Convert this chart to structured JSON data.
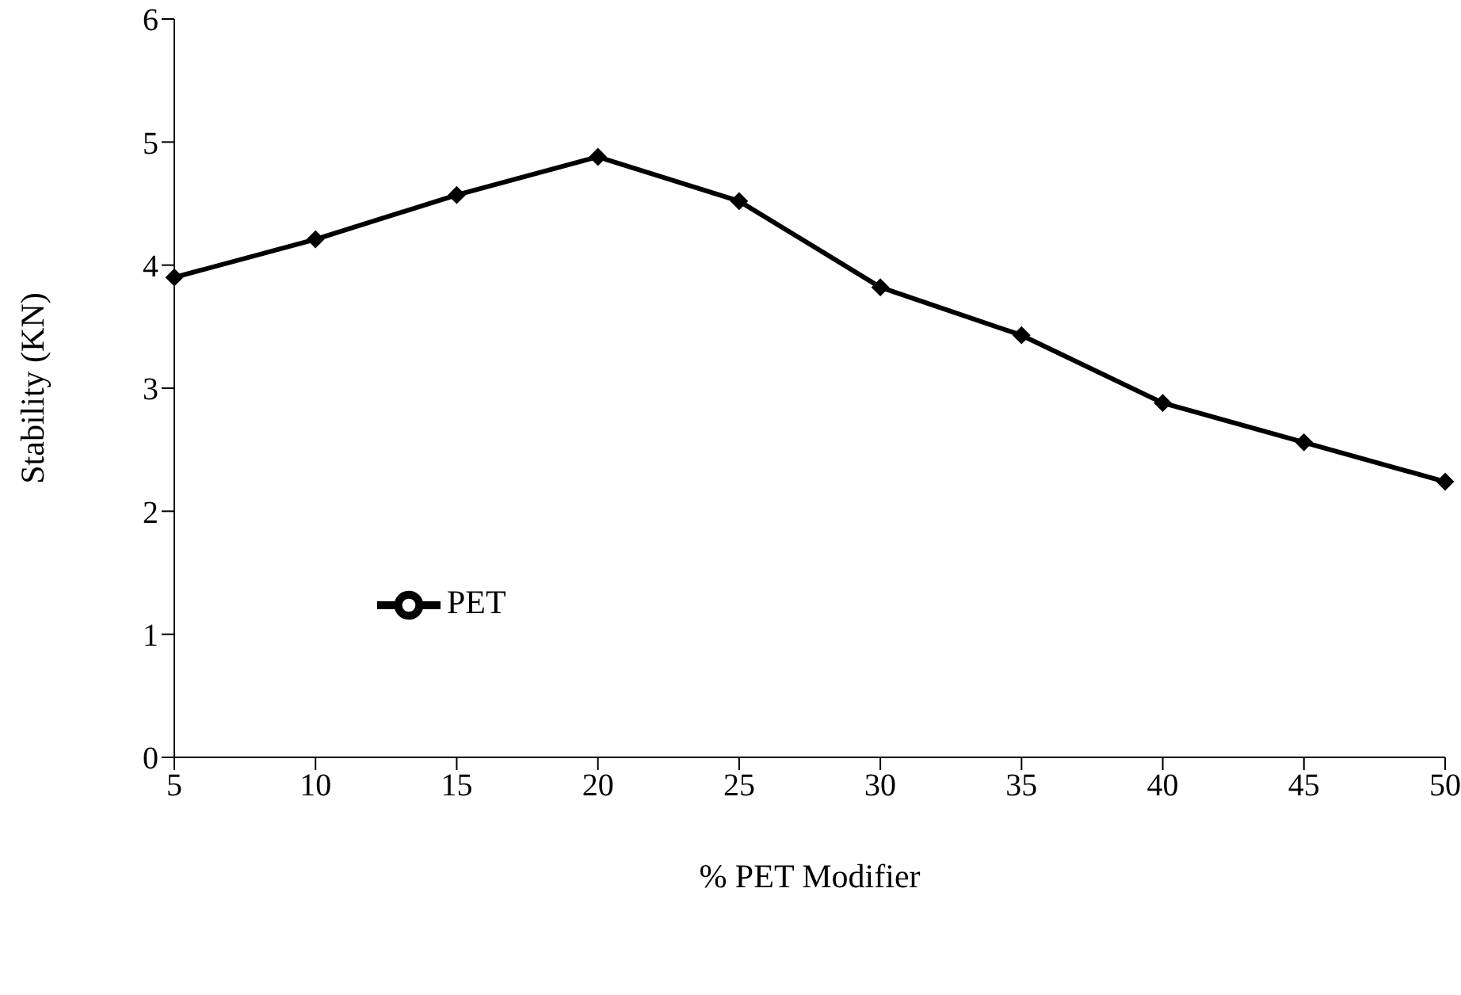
{
  "chart_data": {
    "type": "line",
    "xlabel": "% PET Modifier",
    "ylabel": "Stability (KN)",
    "categories": [
      "5",
      "10",
      "15",
      "20",
      "25",
      "30",
      "35",
      "40",
      "45",
      "50"
    ],
    "series": [
      {
        "name": "PET",
        "color": "#000000",
        "values": [
          3.9,
          4.21,
          4.57,
          4.88,
          4.52,
          3.82,
          3.43,
          2.88,
          2.56,
          2.24
        ]
      }
    ],
    "ylim": [
      0,
      6
    ],
    "yticks": [
      0,
      1,
      2,
      3,
      4,
      5,
      6
    ],
    "grid": false,
    "legend": "left",
    "marker": "diamond",
    "line_style": "solid"
  }
}
